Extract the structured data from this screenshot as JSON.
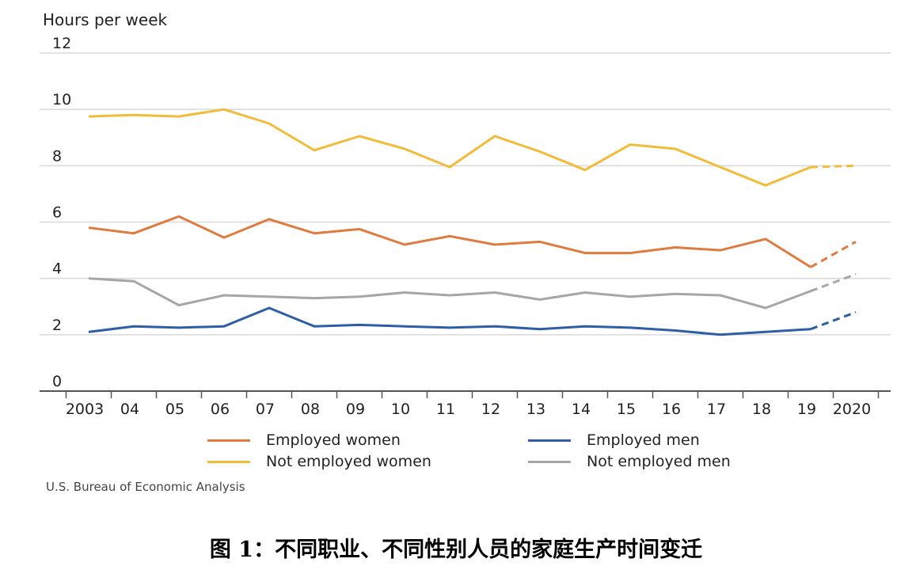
{
  "chart_data": {
    "type": "line",
    "ylabel": "Hours per week",
    "ylim": [
      0,
      12
    ],
    "yticks": [
      0,
      2,
      4,
      6,
      8,
      10,
      12
    ],
    "categories": [
      "2003",
      "04",
      "05",
      "06",
      "07",
      "08",
      "09",
      "10",
      "11",
      "12",
      "13",
      "14",
      "15",
      "16",
      "17",
      "18",
      "19",
      "2020"
    ],
    "grid": true,
    "legend_position": "bottom",
    "projected_from_index": 16,
    "series": [
      {
        "name": "Employed women",
        "color": "#e07a3f",
        "values": [
          5.8,
          5.6,
          6.2,
          5.45,
          6.1,
          5.6,
          5.75,
          5.2,
          5.5,
          5.2,
          5.3,
          4.9,
          4.9,
          5.1,
          5.0,
          5.4,
          4.4,
          5.3
        ]
      },
      {
        "name": "Employed men",
        "color": "#2e5ea8",
        "values": [
          2.1,
          2.3,
          2.25,
          2.3,
          2.95,
          2.3,
          2.35,
          2.3,
          2.25,
          2.3,
          2.2,
          2.3,
          2.25,
          2.15,
          2.0,
          2.1,
          2.2,
          2.8
        ]
      },
      {
        "name": "Not employed women",
        "color": "#f2bb3a",
        "values": [
          9.75,
          9.8,
          9.75,
          10.0,
          9.5,
          8.55,
          9.05,
          8.6,
          7.95,
          9.05,
          8.5,
          7.85,
          8.75,
          8.6,
          7.95,
          7.3,
          7.95,
          8.0
        ]
      },
      {
        "name": "Not employed men",
        "color": "#a6a6a6",
        "values": [
          4.0,
          3.9,
          3.05,
          3.4,
          3.35,
          3.3,
          3.35,
          3.5,
          3.4,
          3.5,
          3.25,
          3.5,
          3.35,
          3.45,
          3.4,
          2.95,
          3.55,
          4.15
        ]
      }
    ]
  },
  "legend": [
    {
      "label": "Employed women",
      "color": "#e07a3f"
    },
    {
      "label": "Employed men",
      "color": "#2e5ea8"
    },
    {
      "label": "Not employed women",
      "color": "#f2bb3a"
    },
    {
      "label": "Not employed men",
      "color": "#a6a6a6"
    }
  ],
  "source": "U.S. Bureau of Economic Analysis",
  "caption": "图 1：不同职业、不同性别人员的家庭生产时间变迁"
}
